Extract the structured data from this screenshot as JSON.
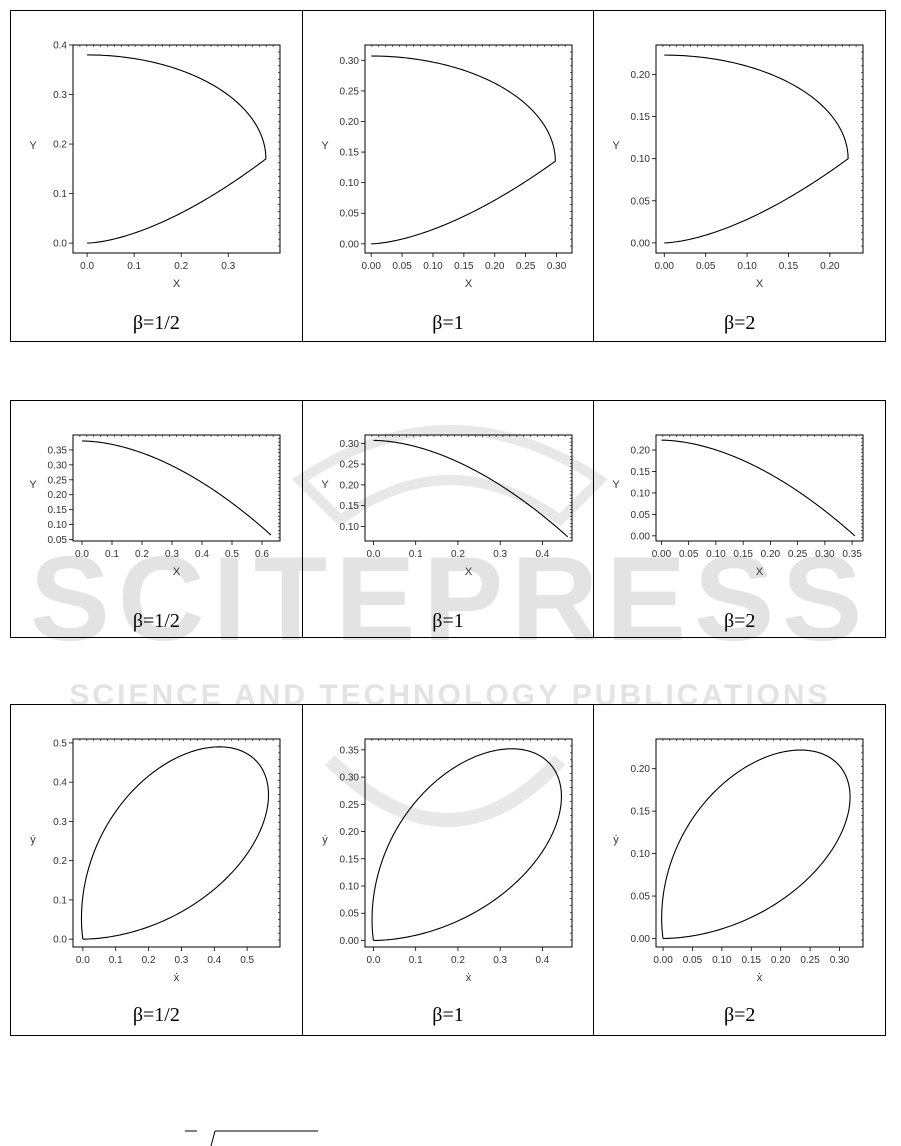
{
  "watermark": {
    "big_text": "SCITEPRESS",
    "sub_text": "SCIENCE AND TECHNOLOGY PUBLICATIONS",
    "color": "#d9d9d9"
  },
  "captions": [
    "β=1/2",
    "β=1",
    "β=2"
  ],
  "chart_data": [
    {
      "id": "r1c1",
      "type": "line",
      "series": [
        {
          "shape": "arc_closed_right",
          "x_min": 0.0,
          "x_max": 0.38,
          "y_top": 0.38,
          "y_bottom": 0.0,
          "y_turn": 0.17
        }
      ],
      "xlabel": "X",
      "ylabel": "Y",
      "xlim": [
        -0.03,
        0.41
      ],
      "ylim": [
        -0.02,
        0.4
      ],
      "xticks": [
        0.0,
        0.1,
        0.2,
        0.3
      ],
      "xticklabels": [
        "0.0",
        "0.1",
        "0.2",
        "0.3"
      ],
      "yticks": [
        0.0,
        0.1,
        0.2,
        0.3,
        0.4
      ],
      "yticklabels": [
        "0.0",
        "0.1",
        "0.2",
        "0.3",
        "0.4"
      ],
      "caption": "β=1/2"
    },
    {
      "id": "r1c2",
      "type": "line",
      "series": [
        {
          "shape": "arc_closed_right",
          "x_min": 0.0,
          "x_max": 0.298,
          "y_top": 0.307,
          "y_bottom": 0.0,
          "y_turn": 0.135
        }
      ],
      "xlabel": "X",
      "ylabel": "Y",
      "xlim": [
        -0.01,
        0.325
      ],
      "ylim": [
        -0.015,
        0.325
      ],
      "xticks": [
        0,
        0.05,
        0.1,
        0.15,
        0.2,
        0.25,
        0.3
      ],
      "xticklabels": [
        "0.00",
        "0.05",
        "0.10",
        "0.15",
        "0.20",
        "0.25",
        "0.30"
      ],
      "yticks": [
        0,
        0.05,
        0.1,
        0.15,
        0.2,
        0.25,
        0.3
      ],
      "yticklabels": [
        "0.00",
        "0.05",
        "0.10",
        "0.15",
        "0.20",
        "0.25",
        "0.30"
      ],
      "caption": "β=1"
    },
    {
      "id": "r1c3",
      "type": "line",
      "series": [
        {
          "shape": "arc_closed_right",
          "x_min": 0.0,
          "x_max": 0.222,
          "y_top": 0.223,
          "y_bottom": 0.0,
          "y_turn": 0.1
        }
      ],
      "xlabel": "X",
      "ylabel": "Y",
      "xlim": [
        -0.01,
        0.24
      ],
      "ylim": [
        -0.012,
        0.235
      ],
      "xticks": [
        0,
        0.05,
        0.1,
        0.15,
        0.2
      ],
      "xticklabels": [
        "0.00",
        "0.05",
        "0.10",
        "0.15",
        "0.20"
      ],
      "yticks": [
        0,
        0.05,
        0.1,
        0.15,
        0.2
      ],
      "yticklabels": [
        "0.00",
        "0.05",
        "0.10",
        "0.15",
        "0.20"
      ],
      "caption": "β=2"
    },
    {
      "id": "r2c1",
      "type": "line",
      "series": [
        {
          "shape": "descending",
          "x_start": 0.0,
          "x_end": 0.63,
          "y_start": 0.38,
          "y_end": 0.065
        }
      ],
      "xlabel": "X",
      "ylabel": "Y",
      "xlim": [
        -0.03,
        0.66
      ],
      "ylim": [
        0.045,
        0.4
      ],
      "xticks": [
        0,
        0.1,
        0.2,
        0.3,
        0.4,
        0.5,
        0.6
      ],
      "xticklabels": [
        "0.0",
        "0.1",
        "0.2",
        "0.3",
        "0.4",
        "0.5",
        "0.6"
      ],
      "yticks": [
        0.05,
        0.1,
        0.15,
        0.2,
        0.25,
        0.3,
        0.35
      ],
      "yticklabels": [
        "0.05",
        "0.10",
        "0.15",
        "0.20",
        "0.25",
        "0.30",
        "0.35"
      ],
      "caption": "β=1/2"
    },
    {
      "id": "r2c2",
      "type": "line",
      "series": [
        {
          "shape": "descending",
          "x_start": 0.0,
          "x_end": 0.46,
          "y_start": 0.307,
          "y_end": 0.075
        }
      ],
      "xlabel": "X",
      "ylabel": "Y",
      "xlim": [
        -0.02,
        0.47
      ],
      "ylim": [
        0.065,
        0.32
      ],
      "xticks": [
        0,
        0.1,
        0.2,
        0.3,
        0.4
      ],
      "xticklabels": [
        "0.0",
        "0.1",
        "0.2",
        "0.3",
        "0.4"
      ],
      "yticks": [
        0.1,
        0.15,
        0.2,
        0.25,
        0.3
      ],
      "yticklabels": [
        "0.10",
        "0.15",
        "0.20",
        "0.25",
        "0.30"
      ],
      "caption": "β=1"
    },
    {
      "id": "r2c3",
      "type": "line",
      "series": [
        {
          "shape": "descending",
          "x_start": 0.0,
          "x_end": 0.355,
          "y_start": 0.223,
          "y_end": 0.0
        }
      ],
      "xlabel": "X",
      "ylabel": "Y",
      "xlim": [
        -0.01,
        0.37
      ],
      "ylim": [
        -0.012,
        0.235
      ],
      "xticks": [
        0,
        0.05,
        0.1,
        0.15,
        0.2,
        0.25,
        0.3,
        0.35
      ],
      "xticklabels": [
        "0.00",
        "0.05",
        "0.10",
        "0.15",
        "0.20",
        "0.25",
        "0.30",
        "0.35"
      ],
      "yticks": [
        0,
        0.05,
        0.1,
        0.15,
        0.2
      ],
      "yticklabels": [
        "0.00",
        "0.05",
        "0.10",
        "0.15",
        "0.20"
      ],
      "caption": "β=2"
    },
    {
      "id": "r3c1",
      "type": "line",
      "series": [
        {
          "shape": "drop_loop",
          "x_max": 0.565,
          "y_max": 0.49,
          "x_at_ymax": 0.38,
          "y_at_xmax": 0.3
        }
      ],
      "xlabel": "ẋ",
      "ylabel": "ẏ",
      "xlim": [
        -0.03,
        0.6
      ],
      "ylim": [
        -0.02,
        0.51
      ],
      "xticks": [
        0,
        0.1,
        0.2,
        0.3,
        0.4,
        0.5
      ],
      "xticklabels": [
        "0.0",
        "0.1",
        "0.2",
        "0.3",
        "0.4",
        "0.5"
      ],
      "yticks": [
        0,
        0.1,
        0.2,
        0.3,
        0.4,
        0.5
      ],
      "yticklabels": [
        "0.0",
        "0.1",
        "0.2",
        "0.3",
        "0.4",
        "0.5"
      ],
      "caption": "β=1/2"
    },
    {
      "id": "r3c2",
      "type": "line",
      "series": [
        {
          "shape": "drop_loop",
          "x_max": 0.445,
          "y_max": 0.352,
          "x_at_ymax": 0.3,
          "y_at_xmax": 0.225
        }
      ],
      "xlabel": "ẋ",
      "ylabel": "ẏ",
      "xlim": [
        -0.02,
        0.47
      ],
      "ylim": [
        -0.012,
        0.37
      ],
      "xticks": [
        0,
        0.1,
        0.2,
        0.3,
        0.4
      ],
      "xticklabels": [
        "0.0",
        "0.1",
        "0.2",
        "0.3",
        "0.4"
      ],
      "yticks": [
        0,
        0.05,
        0.1,
        0.15,
        0.2,
        0.25,
        0.3,
        0.35
      ],
      "yticklabels": [
        "0.00",
        "0.05",
        "0.10",
        "0.15",
        "0.20",
        "0.25",
        "0.30",
        "0.35"
      ],
      "caption": "β=1"
    },
    {
      "id": "r3c3",
      "type": "line",
      "series": [
        {
          "shape": "drop_loop",
          "x_max": 0.318,
          "y_max": 0.222,
          "x_at_ymax": 0.21,
          "y_at_xmax": 0.14
        }
      ],
      "xlabel": "ẋ",
      "ylabel": "ẏ",
      "xlim": [
        -0.012,
        0.34
      ],
      "ylim": [
        -0.01,
        0.235
      ],
      "xticks": [
        0,
        0.05,
        0.1,
        0.15,
        0.2,
        0.25,
        0.3
      ],
      "xticklabels": [
        "0.00",
        "0.05",
        "0.10",
        "0.15",
        "0.20",
        "0.25",
        "0.30"
      ],
      "yticks": [
        0,
        0.05,
        0.1,
        0.15,
        0.2
      ],
      "yticklabels": [
        "0.00",
        "0.05",
        "0.10",
        "0.15",
        "0.20"
      ],
      "caption": "β=2"
    }
  ]
}
